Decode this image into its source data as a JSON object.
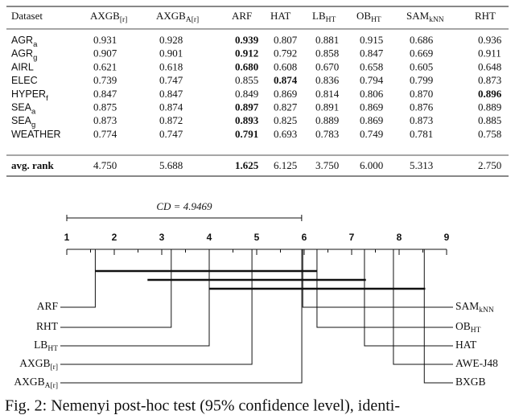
{
  "table": {
    "columns": [
      {
        "base": "Dataset"
      },
      {
        "base": "AXGB",
        "sub": "[r]"
      },
      {
        "base": "AXGB",
        "sub": "A[r]"
      },
      {
        "base": "ARF"
      },
      {
        "base": "HAT"
      },
      {
        "base": "LB",
        "sub": "HT"
      },
      {
        "base": "OB",
        "sub": "HT"
      },
      {
        "base": "SAM",
        "sub": "kNN"
      },
      {
        "base": "RHT"
      }
    ],
    "rows": [
      {
        "name": {
          "base": "AGR",
          "sub": "a"
        },
        "cells": [
          "0.931",
          "0.928",
          "0.939",
          "0.807",
          "0.881",
          "0.915",
          "0.686",
          "0.936"
        ],
        "bold": 2
      },
      {
        "name": {
          "base": "AGR",
          "sub": "g"
        },
        "cells": [
          "0.907",
          "0.901",
          "0.912",
          "0.792",
          "0.858",
          "0.847",
          "0.669",
          "0.911"
        ],
        "bold": 2
      },
      {
        "name": {
          "base": "AIRL"
        },
        "cells": [
          "0.621",
          "0.618",
          "0.680",
          "0.608",
          "0.670",
          "0.658",
          "0.605",
          "0.648"
        ],
        "bold": 2
      },
      {
        "name": {
          "base": "ELEC"
        },
        "cells": [
          "0.739",
          "0.747",
          "0.855",
          "0.874",
          "0.836",
          "0.794",
          "0.799",
          "0.873"
        ],
        "bold": 3
      },
      {
        "name": {
          "base": "HYPER",
          "sub": "f"
        },
        "cells": [
          "0.847",
          "0.847",
          "0.849",
          "0.869",
          "0.814",
          "0.806",
          "0.870",
          "0.896"
        ],
        "bold": 7
      },
      {
        "name": {
          "base": "SEA",
          "sub": "a"
        },
        "cells": [
          "0.875",
          "0.874",
          "0.897",
          "0.827",
          "0.891",
          "0.869",
          "0.876",
          "0.889"
        ],
        "bold": 2
      },
      {
        "name": {
          "base": "SEA",
          "sub": "g"
        },
        "cells": [
          "0.873",
          "0.872",
          "0.893",
          "0.825",
          "0.889",
          "0.869",
          "0.873",
          "0.885"
        ],
        "bold": 2
      },
      {
        "name": {
          "base": "WEATHER"
        },
        "cells": [
          "0.774",
          "0.747",
          "0.791",
          "0.693",
          "0.783",
          "0.749",
          "0.781",
          "0.758"
        ],
        "bold": 2
      }
    ],
    "summary": {
      "name": "avg. rank",
      "cells": [
        "4.750",
        "5.688",
        "1.625",
        "6.125",
        "3.750",
        "6.000",
        "5.313",
        "2.750"
      ],
      "bold": 2
    }
  },
  "diagram": {
    "cd": {
      "value": 4.9469,
      "label": "CD = 4.9469"
    },
    "xlim": [
      1,
      9
    ],
    "xticks": [
      1,
      2,
      3,
      4,
      5,
      6,
      7,
      8,
      9
    ],
    "left": [
      {
        "name": {
          "base": "ARF"
        },
        "rank": 1.6
      },
      {
        "name": {
          "base": "RHT"
        },
        "rank": 3.2
      },
      {
        "name": {
          "base": "LB",
          "sub": "HT"
        },
        "rank": 4.0
      },
      {
        "name": {
          "base": "AXGB",
          "sub": "[r]"
        },
        "rank": 4.9
      },
      {
        "name": {
          "base": "AXGB",
          "sub": "A[r]"
        },
        "rank": 5.95
      }
    ],
    "right": [
      {
        "name": {
          "base": "SAM",
          "sub": "kNN"
        },
        "rank": 5.97
      },
      {
        "name": {
          "base": "OB",
          "sub": "HT"
        },
        "rank": 6.27
      },
      {
        "name": {
          "base": "HAT"
        },
        "rank": 7.27
      },
      {
        "name": {
          "base": "AWE-J48"
        },
        "rank": 7.88
      },
      {
        "name": {
          "base": "BXGB"
        },
        "rank": 8.53
      }
    ],
    "cliques": [
      [
        1.6,
        6.27
      ],
      [
        2.7,
        7.3
      ],
      [
        4.0,
        8.55
      ]
    ]
  },
  "caption": "Fig. 2: Nemenyi post-hoc test (95% confidence level), identi-"
}
